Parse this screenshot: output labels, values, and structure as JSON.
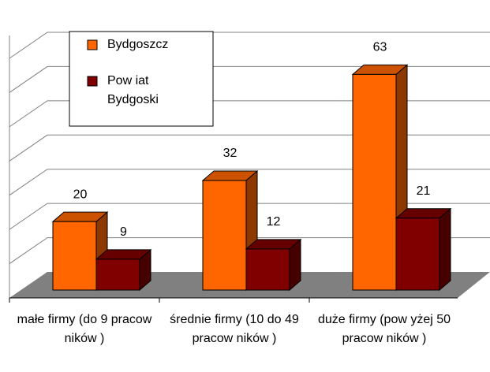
{
  "chart_data": {
    "type": "bar3d",
    "categories": [
      "małe firmy (do 9 pracow ników )",
      "średnie firmy (10 do 49 pracow ników )",
      "duże firmy (pow yżej 50 pracow ników )"
    ],
    "series": [
      {
        "name": "Bydgoszcz",
        "color": "#ff6600",
        "values": [
          20,
          32,
          63
        ]
      },
      {
        "name": "Pow iat Bydgoski",
        "color": "#800000",
        "values": [
          9,
          12,
          21
        ]
      }
    ],
    "ylim": [
      0,
      70
    ],
    "yticks": [
      0,
      10,
      20,
      30,
      40,
      50,
      60,
      70
    ],
    "grid": true,
    "legend": "top-left"
  }
}
